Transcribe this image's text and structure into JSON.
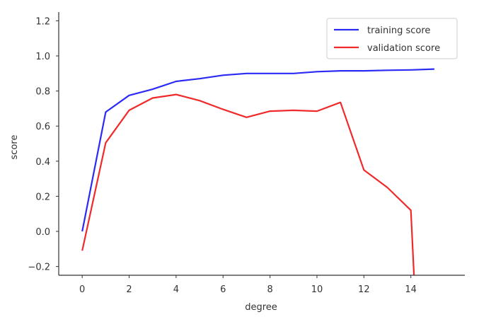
{
  "chart_data": {
    "type": "line",
    "xlabel": "degree",
    "ylabel": "score",
    "xlim": [
      -1,
      16.3
    ],
    "ylim": [
      -0.25,
      1.25
    ],
    "xticks": [
      0,
      2,
      4,
      6,
      8,
      10,
      12,
      14
    ],
    "yticks": [
      -0.2,
      0.0,
      0.2,
      0.4,
      0.6,
      0.8,
      1.0,
      1.2
    ],
    "xtick_labels": [
      "0",
      "2",
      "4",
      "6",
      "8",
      "10",
      "12",
      "14"
    ],
    "ytick_labels": [
      "−0.2",
      "0.0",
      "0.2",
      "0.4",
      "0.6",
      "0.8",
      "1.0",
      "1.2"
    ],
    "grid": false,
    "legend": "top-right",
    "series": [
      {
        "name": "training score",
        "color": "#2b2bf5",
        "x": [
          0,
          1,
          2,
          3,
          4,
          5,
          6,
          7,
          8,
          9,
          10,
          11,
          12,
          13,
          14,
          15
        ],
        "y": [
          0.0,
          0.68,
          0.775,
          0.81,
          0.855,
          0.87,
          0.89,
          0.9,
          0.9,
          0.9,
          0.91,
          0.915,
          0.915,
          0.918,
          0.92,
          0.925
        ]
      },
      {
        "name": "validation score",
        "color": "#f02a2a",
        "x": [
          0,
          1,
          2,
          3,
          4,
          5,
          6,
          7,
          8,
          9,
          10,
          11,
          12,
          13,
          14,
          14.15
        ],
        "y": [
          -0.11,
          0.505,
          0.69,
          0.76,
          0.78,
          0.745,
          0.695,
          0.65,
          0.685,
          0.69,
          0.685,
          0.735,
          0.35,
          0.25,
          0.12,
          -0.3
        ]
      }
    ]
  }
}
